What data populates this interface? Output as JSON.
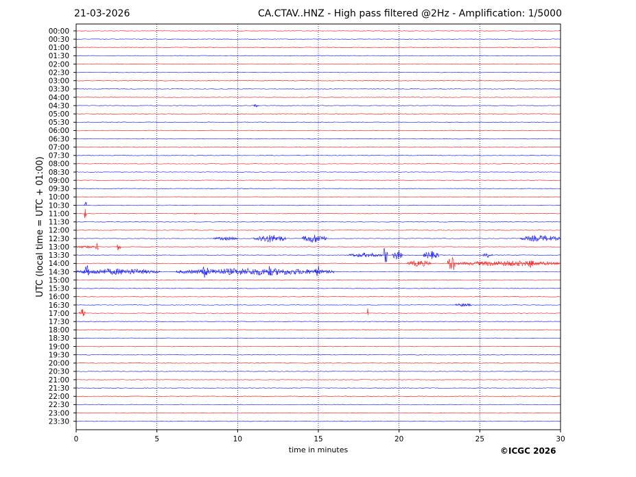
{
  "header": {
    "date": "21-03-2026",
    "title": "CA.CTAV..HNZ - High pass filtered @2Hz - Amplification: 1/5000"
  },
  "footer": {
    "copyright": "©ICGC 2026"
  },
  "chart_data": {
    "type": "line",
    "xlabel": "time in minutes",
    "ylabel": "UTC (local time = UTC + 01:00)",
    "xlim": [
      0,
      30
    ],
    "x_ticks": [
      0,
      5,
      10,
      15,
      20,
      25,
      30
    ],
    "grid": "vertical dotted at every 5 minutes",
    "colors": {
      "odd_trace": "#ff0000",
      "even_trace": "#0000ff",
      "grid": "#000080"
    },
    "rows": [
      "00:00",
      "00:30",
      "01:00",
      "01:30",
      "02:00",
      "02:30",
      "03:00",
      "03:30",
      "04:00",
      "04:30",
      "05:00",
      "05:30",
      "06:00",
      "06:30",
      "07:00",
      "07:30",
      "08:00",
      "08:30",
      "09:00",
      "09:30",
      "10:00",
      "10:30",
      "11:00",
      "11:30",
      "12:00",
      "12:30",
      "13:00",
      "13:30",
      "14:00",
      "14:30",
      "15:00",
      "15:30",
      "16:00",
      "16:30",
      "17:00",
      "17:30",
      "18:00",
      "18:30",
      "19:00",
      "19:30",
      "20:00",
      "20:30",
      "21:00",
      "21:30",
      "22:00",
      "22:30",
      "23:00",
      "23:30"
    ],
    "events": [
      {
        "row": "10:30",
        "x": 0.5,
        "duration": 0.15,
        "amplitude": 1.0
      },
      {
        "row": "11:00",
        "x": 0.5,
        "duration": 0.15,
        "amplitude": 1.0
      },
      {
        "row": "12:30",
        "x": 8.5,
        "duration": 1.5,
        "amplitude": 0.2
      },
      {
        "row": "12:30",
        "x": 11.0,
        "duration": 2.0,
        "amplitude": 0.45
      },
      {
        "row": "12:30",
        "x": 14.0,
        "duration": 1.5,
        "amplitude": 0.5
      },
      {
        "row": "12:30",
        "x": 27.5,
        "duration": 2.5,
        "amplitude": 0.35
      },
      {
        "row": "13:00",
        "x": 0.0,
        "duration": 1.2,
        "amplitude": 0.15
      },
      {
        "row": "13:00",
        "x": 1.2,
        "duration": 0.2,
        "amplitude": 0.45
      },
      {
        "row": "13:00",
        "x": 2.5,
        "duration": 0.3,
        "amplitude": 0.5
      },
      {
        "row": "13:30",
        "x": 16.8,
        "duration": 2.2,
        "amplitude": 0.25
      },
      {
        "row": "13:30",
        "x": 19.0,
        "duration": 0.3,
        "amplitude": 1.0
      },
      {
        "row": "13:30",
        "x": 19.6,
        "duration": 0.6,
        "amplitude": 0.55
      },
      {
        "row": "13:30",
        "x": 21.5,
        "duration": 1.0,
        "amplitude": 0.45
      },
      {
        "row": "13:30",
        "x": 25.2,
        "duration": 0.6,
        "amplitude": 0.25
      },
      {
        "row": "14:00",
        "x": 20.5,
        "duration": 1.5,
        "amplitude": 0.35
      },
      {
        "row": "14:00",
        "x": 23.0,
        "duration": 0.5,
        "amplitude": 1.0
      },
      {
        "row": "14:00",
        "x": 23.5,
        "duration": 6.5,
        "amplitude": 0.3
      },
      {
        "row": "14:00",
        "x": 28.0,
        "duration": 0.3,
        "amplitude": 0.7
      },
      {
        "row": "14:30",
        "x": 0.0,
        "duration": 5.2,
        "amplitude": 0.35
      },
      {
        "row": "14:30",
        "x": 0.5,
        "duration": 0.3,
        "amplitude": 0.8
      },
      {
        "row": "14:30",
        "x": 6.2,
        "duration": 9.8,
        "amplitude": 0.4
      },
      {
        "row": "14:30",
        "x": 7.8,
        "duration": 0.4,
        "amplitude": 0.8
      },
      {
        "row": "14:30",
        "x": 11.9,
        "duration": 0.2,
        "amplitude": 1.0
      },
      {
        "row": "14:30",
        "x": 14.8,
        "duration": 0.3,
        "amplitude": 0.9
      },
      {
        "row": "16:30",
        "x": 23.5,
        "duration": 1.0,
        "amplitude": 0.2
      },
      {
        "row": "17:00",
        "x": 0.2,
        "duration": 0.4,
        "amplitude": 0.5
      },
      {
        "row": "17:00",
        "x": 18.0,
        "duration": 0.1,
        "amplitude": 1.0
      },
      {
        "row": "04:30",
        "x": 11.0,
        "duration": 0.3,
        "amplitude": 0.2
      },
      {
        "row": "11:00",
        "x": 7.3,
        "duration": 0.2,
        "amplitude": 0.1
      }
    ]
  }
}
